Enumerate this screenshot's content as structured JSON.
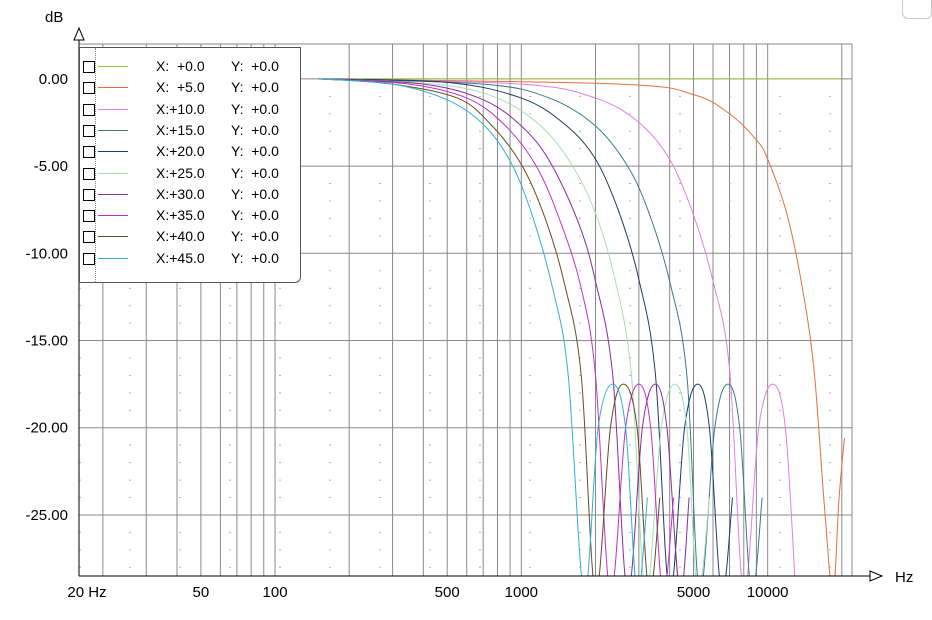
{
  "chart_data": {
    "type": "line",
    "title": "",
    "xlabel": "Hz",
    "ylabel": "dB",
    "x_scale": "log",
    "xlim": [
      16,
      22000
    ],
    "ylim": [
      -28.5,
      2
    ],
    "x_ticks": [
      {
        "value": 20,
        "label": "20 Hz"
      },
      {
        "value": 50,
        "label": "50"
      },
      {
        "value": 100,
        "label": "100"
      },
      {
        "value": 500,
        "label": "500"
      },
      {
        "value": 1000,
        "label": "1000"
      },
      {
        "value": 5000,
        "label": "5000"
      },
      {
        "value": 10000,
        "label": "10000"
      }
    ],
    "y_ticks": [
      {
        "value": 0,
        "label": "0.00"
      },
      {
        "value": -5,
        "label": "-5.00"
      },
      {
        "value": -10,
        "label": "-10.00"
      },
      {
        "value": -15,
        "label": "-15.00"
      },
      {
        "value": -20,
        "label": "-20.00"
      },
      {
        "value": -25,
        "label": "-25.00"
      }
    ],
    "grid": true,
    "legend_position": "top-left",
    "series": [
      {
        "name_x": "X:  +0.0",
        "name_y": "Y:  +0.0",
        "color": "#9ac43a",
        "x": [
          150,
          20000
        ],
        "y": [
          0,
          0
        ]
      },
      {
        "name_x": "X:  +5.0",
        "name_y": "Y:  +0.0",
        "color": "#e07040",
        "x": [
          150,
          2500,
          5000,
          7000,
          9000,
          10000,
          12000,
          14000,
          15500,
          17000,
          18400,
          19500,
          20500
        ],
        "y": [
          0,
          -0.3,
          -0.9,
          -2.0,
          -3.5,
          -4.6,
          -7.8,
          -12.4,
          -17.0,
          -24.5,
          -30,
          -24.0,
          -20.6
        ]
      },
      {
        "name_x": "X:+10.0",
        "name_y": "Y:  +0.0",
        "color": "#e080e0",
        "x": [
          150,
          1000,
          2000,
          3000,
          4000,
          5000,
          6000,
          7000,
          8000,
          9200,
          10500,
          11800,
          13000
        ],
        "y": [
          0,
          -0.3,
          -1.1,
          -2.5,
          -4.6,
          -7.8,
          -11.6,
          -16.6,
          -30,
          -20.0,
          -17.5,
          -20.0,
          -30
        ]
      },
      {
        "name_x": "X:+15.0",
        "name_y": "Y:  +0.0",
        "color": "#3a7a8a",
        "x": [
          150,
          700,
          1300,
          2000,
          2700,
          3300,
          4000,
          4700,
          5300,
          6100,
          6900,
          7700,
          8600,
          9500
        ],
        "y": [
          0,
          -0.3,
          -1.1,
          -2.7,
          -5.0,
          -7.7,
          -11.6,
          -17.0,
          -30,
          -20.0,
          -17.5,
          -20.0,
          -30,
          -24.0
        ]
      },
      {
        "name_x": "X:+20.0",
        "name_y": "Y:  +0.0",
        "color": "#1e3a6a",
        "x": [
          150,
          500,
          1000,
          1500,
          2000,
          2500,
          3000,
          3500,
          4000,
          4600,
          5200,
          5800,
          6500,
          7200
        ],
        "y": [
          0,
          -0.2,
          -1.1,
          -2.6,
          -4.6,
          -7.7,
          -11.5,
          -16.9,
          -30,
          -20.0,
          -17.5,
          -20.0,
          -30,
          -24.0
        ]
      },
      {
        "name_x": "X:+25.0",
        "name_y": "Y:  +0.0",
        "color": "#a6e0b0",
        "x": [
          150,
          450,
          800,
          1200,
          1600,
          2000,
          2400,
          2800,
          3200,
          3700,
          4200,
          4700,
          5200,
          5800
        ],
        "y": [
          0,
          -0.3,
          -1.1,
          -2.7,
          -4.9,
          -7.7,
          -11.5,
          -17.0,
          -30,
          -20.0,
          -17.5,
          -20.0,
          -30,
          -24.0
        ]
      },
      {
        "name_x": "X:+30.0",
        "name_y": "Y:  +0.0",
        "color": "#8a2aa0",
        "x": [
          150,
          400,
          700,
          1000,
          1300,
          1700,
          2000,
          2350,
          2700,
          3100,
          3500,
          3900,
          4400,
          4800
        ],
        "y": [
          0,
          -0.3,
          -1.2,
          -2.7,
          -4.7,
          -8.2,
          -11.6,
          -17.0,
          -30,
          -20.0,
          -17.5,
          -20.0,
          -30,
          -24.0
        ]
      },
      {
        "name_x": "X:+35.0",
        "name_y": "Y:  +0.0",
        "color": "#c030c0",
        "x": [
          150,
          350,
          600,
          850,
          1150,
          1450,
          1750,
          2000,
          2300,
          2650,
          3000,
          3350,
          3750,
          4150
        ],
        "y": [
          0,
          -0.3,
          -1.1,
          -2.6,
          -5.0,
          -8.3,
          -12.0,
          -17.0,
          -30,
          -20.0,
          -17.5,
          -20.0,
          -30,
          -24.0
        ]
      },
      {
        "name_x": "X:+40.0",
        "name_y": "Y:  +0.0",
        "color": "#6a4a20",
        "x": [
          150,
          300,
          550,
          750,
          1000,
          1250,
          1500,
          1750,
          2000,
          2300,
          2600,
          2950,
          3300,
          3650
        ],
        "y": [
          0,
          -0.3,
          -1.1,
          -2.6,
          -4.9,
          -8.0,
          -11.8,
          -17.0,
          -30,
          -20.0,
          -17.5,
          -20.0,
          -30,
          -24.0
        ]
      },
      {
        "name_x": "X:+45.0",
        "name_y": "Y:  +0.0",
        "color": "#30b0d0",
        "x": [
          150,
          300,
          500,
          700,
          900,
          1100,
          1350,
          1550,
          1800,
          2050,
          2350,
          2650,
          2950,
          3250
        ],
        "y": [
          0,
          -0.3,
          -1.2,
          -2.6,
          -4.7,
          -7.7,
          -12.2,
          -17.0,
          -30,
          -20.0,
          -17.5,
          -20.0,
          -30,
          -24.0
        ]
      }
    ]
  }
}
